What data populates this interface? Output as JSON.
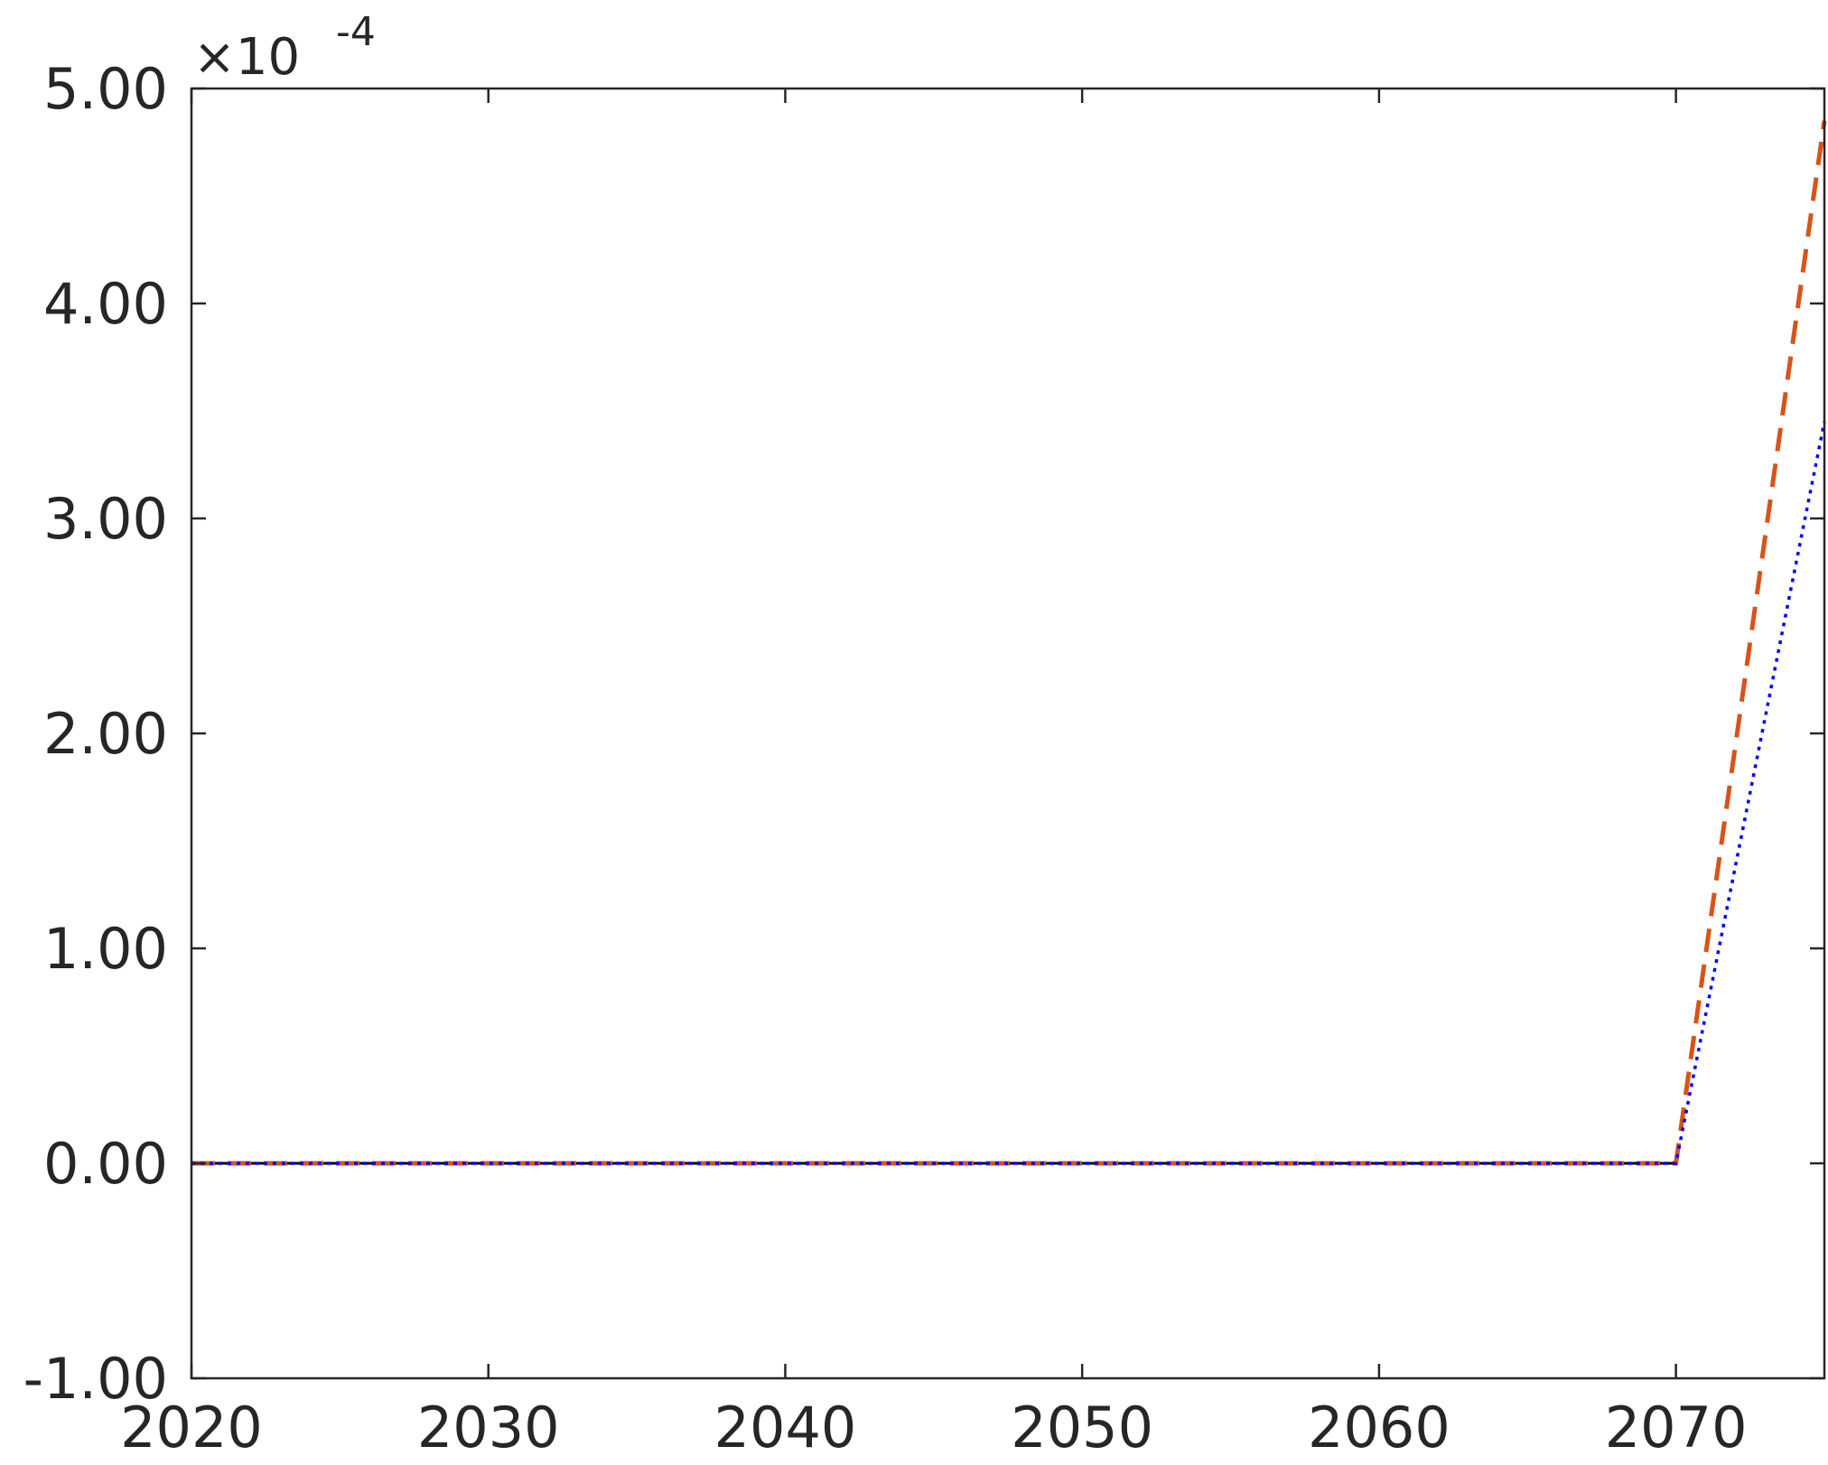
{
  "chart_data": {
    "type": "line",
    "title": "",
    "xlabel": "",
    "ylabel": "",
    "xlim": [
      2020,
      2075
    ],
    "ylim": [
      -1.0,
      5.0
    ],
    "exponent_label": {
      "base": "×10",
      "power": "-4"
    },
    "x_ticks": [
      2020,
      2030,
      2040,
      2050,
      2060,
      2070
    ],
    "x_tick_labels": [
      "2020",
      "2030",
      "2040",
      "2050",
      "2060",
      "2070"
    ],
    "y_ticks": [
      -1,
      0,
      1,
      2,
      3,
      4,
      5
    ],
    "y_tick_labels": [
      "-1.00",
      "0.00",
      "1.00",
      "2.00",
      "3.00",
      "4.00",
      "5.00"
    ],
    "grid": false,
    "legend": "none",
    "series": [
      {
        "color": "#000000",
        "dash": "solid",
        "x": [
          2020,
          2070
        ],
        "y": [
          0,
          0
        ]
      },
      {
        "color": "#d95319",
        "dash": "dashed",
        "x": [
          2020,
          2070,
          2075
        ],
        "y": [
          0,
          0,
          4.85
        ]
      },
      {
        "color": "#0000ff",
        "dash": "dotted",
        "x": [
          2020,
          2070,
          2075
        ],
        "y": [
          0,
          0,
          3.45
        ]
      }
    ]
  }
}
